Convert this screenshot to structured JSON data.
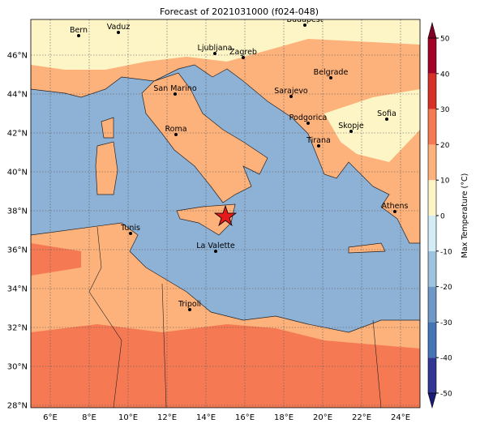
{
  "title": "Forecast of 2021031000 (f024-048)",
  "x_ticks": [
    {
      "value": 6,
      "label": "6°E"
    },
    {
      "value": 8,
      "label": "8°E"
    },
    {
      "value": 10,
      "label": "10°E"
    },
    {
      "value": 12,
      "label": "12°E"
    },
    {
      "value": 14,
      "label": "14°E"
    },
    {
      "value": 16,
      "label": "16°E"
    },
    {
      "value": 18,
      "label": "18°E"
    },
    {
      "value": 20,
      "label": "20°E"
    },
    {
      "value": 22,
      "label": "22°E"
    },
    {
      "value": 24,
      "label": "24°E"
    }
  ],
  "y_ticks": [
    {
      "value": 28,
      "label": "28°N"
    },
    {
      "value": 30,
      "label": "30°N"
    },
    {
      "value": 32,
      "label": "32°N"
    },
    {
      "value": 34,
      "label": "34°N"
    },
    {
      "value": 36,
      "label": "36°N"
    },
    {
      "value": 38,
      "label": "38°N"
    },
    {
      "value": 40,
      "label": "40°N"
    },
    {
      "value": 42,
      "label": "42°N"
    },
    {
      "value": 44,
      "label": "44°N"
    },
    {
      "value": 46,
      "label": "46°N"
    }
  ],
  "colorbar": {
    "label": "Max Temperature (°C)",
    "ticks": [
      -50,
      -40,
      -30,
      -20,
      -10,
      0,
      10,
      20,
      30,
      40,
      50
    ],
    "colors": [
      "#313695",
      "#4575b4",
      "#6f98c6",
      "#9ec3de",
      "#d4ecf5",
      "#fdf5c6",
      "#fdb27b",
      "#f57a53",
      "#d73027",
      "#a50026"
    ],
    "under_color": "#1a1a78",
    "over_color": "#800026"
  },
  "cities": [
    "Bern",
    "Vaduz",
    "Budapest",
    "Ljubljana",
    "Zagreb",
    "San Marino",
    "Belgrade",
    "Sarajevo",
    "Sofia",
    "Podgorica",
    "Skopje",
    "Roma",
    "Tirana",
    "Athens",
    "Tunis",
    "La Valette",
    "Tripoli"
  ]
}
